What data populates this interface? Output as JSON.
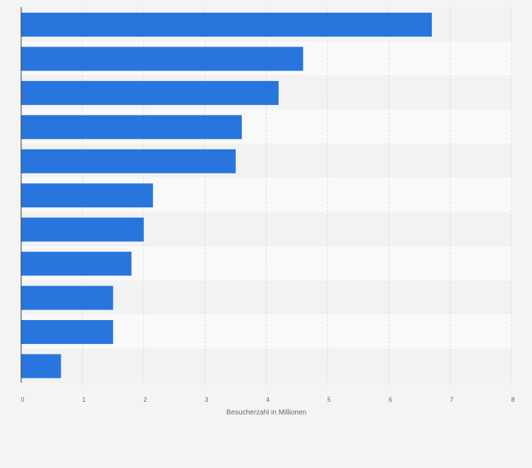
{
  "chart_data": {
    "type": "bar",
    "orientation": "horizontal",
    "title": "",
    "xlabel": "Besucherzahl in Millionen",
    "ylabel": "",
    "xlim": [
      0,
      8
    ],
    "xticks": [
      "0",
      "1",
      "2",
      "3",
      "4",
      "5",
      "6",
      "7",
      "8"
    ],
    "categories": [
      "",
      "",
      "",
      "",
      "",
      "",
      "",
      "",
      "",
      "",
      ""
    ],
    "values": [
      6.7,
      4.6,
      4.2,
      3.6,
      3.5,
      2.15,
      2.0,
      1.8,
      1.5,
      1.5,
      0.65
    ],
    "grid": true,
    "legend": "none",
    "colors": {
      "bar": "#2876dd",
      "background": "#f4f4f4",
      "band_light": "#f9f9f9",
      "band_dark": "#f2f2f2",
      "grid": "#d9d9d9",
      "axis": "#333333",
      "tick_text": "#666666"
    }
  }
}
